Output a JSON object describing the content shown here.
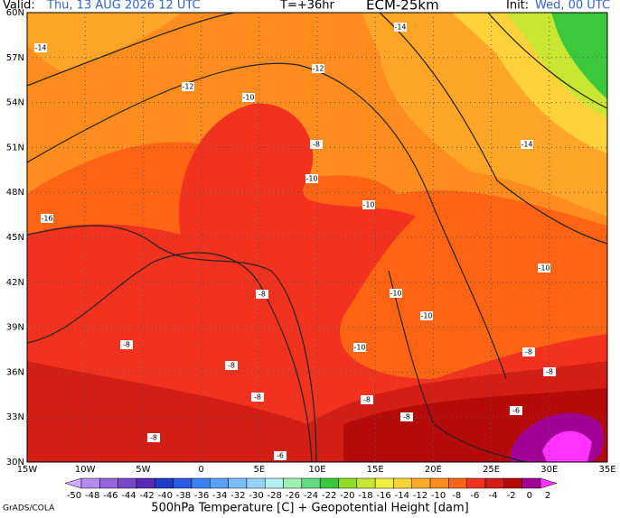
{
  "header": {
    "valid_label": "Valid:",
    "valid_time": "Thu, 13 AUG 2026  12 UTC",
    "lead": "T=+36hr",
    "model": "ECM-25km",
    "init_label": "Init:",
    "init_time": "Wed, 00 UTC"
  },
  "lat_labels": [
    "60N",
    "57N",
    "54N",
    "51N",
    "48N",
    "45N",
    "42N",
    "39N",
    "36N",
    "33N",
    "30N"
  ],
  "lon_labels": [
    "15W",
    "10W",
    "5W",
    "0",
    "5E",
    "10E",
    "15E",
    "20E",
    "25E",
    "30E",
    "35E"
  ],
  "contour_labels": [
    -14,
    -12,
    -10,
    -12,
    -14,
    -14,
    -10,
    -10,
    -16,
    -10,
    -10,
    -10,
    -10,
    -8,
    -8,
    -8,
    -8,
    -8,
    -8,
    -8,
    -8,
    -6,
    -8,
    -8,
    -6
  ],
  "colorbar": {
    "labels": [
      -50,
      -48,
      -46,
      -44,
      -42,
      -40,
      -38,
      -36,
      -34,
      -32,
      -30,
      -28,
      -26,
      -24,
      -22,
      -20,
      -18,
      -16,
      -14,
      -12,
      -10,
      -8,
      -6,
      -4,
      -2,
      0,
      2
    ],
    "colors": [
      "#d2aaff",
      "#b48cf0",
      "#9664dc",
      "#7846c8",
      "#5a28b4",
      "#1e3cc8",
      "#285ae6",
      "#3c82f0",
      "#5aa0f5",
      "#78befa",
      "#96d2fa",
      "#b4f0f0",
      "#a0f0b4",
      "#64dc82",
      "#3cc83c",
      "#8cdc28",
      "#c8e632",
      "#f0f03c",
      "#ffd23c",
      "#ffaa28",
      "#ff8c1e",
      "#ff6414",
      "#f0321e",
      "#d21e14",
      "#b40a0a",
      "#a00096",
      "#ff32ff"
    ]
  },
  "footer": {
    "caption": "500hPa Temperature [C] + Geopotential Height [dam]",
    "credit": "GrADS/COLA"
  }
}
